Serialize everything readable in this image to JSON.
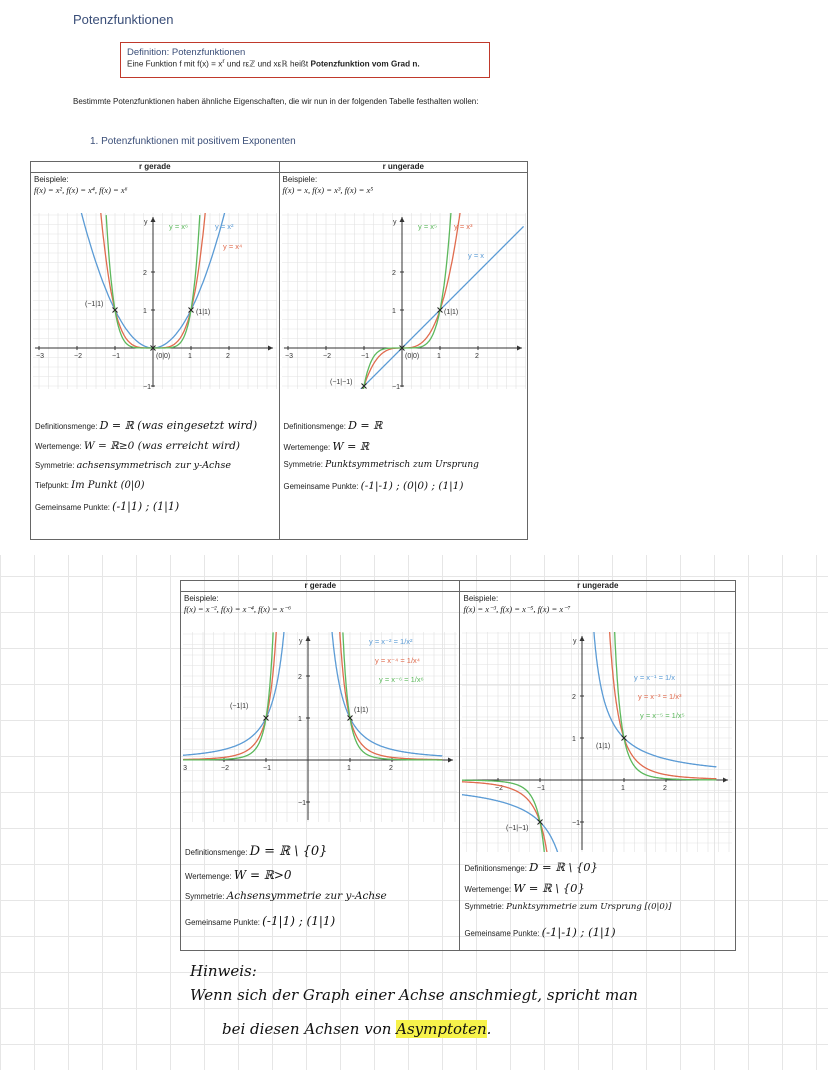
{
  "page_title": "Potenzfunktionen",
  "definition": {
    "heading": "Definition: Potenzfunktionen",
    "text_before": "Eine Funktion f mit f(x) = x",
    "exp": "r",
    "text_mid": " und rεℤ und xεℝ heißt ",
    "bold": "Potenzfunktion vom Grad n."
  },
  "intro": "Bestimmte Potenzfunktionen haben ähnliche Eigenschaften, die wir nun in der folgenden Tabelle festhalten wollen:",
  "subheading": "1. Potenzfunktionen mit positivem Exponenten",
  "labels": {
    "beispiele": "Beispiele:",
    "definitionsmenge": "Definitionsmenge:",
    "wertemenge": "Wertemenge:",
    "symmetrie": "Symmetrie:",
    "tiefpunkt": "Tiefpunkt:",
    "gemeinsame_punkte": "Gemeinsame Punkte:"
  },
  "table1": {
    "col1": {
      "header": "r gerade",
      "examples": "f(x) = x², f(x) = x⁴, f(x) = x⁶",
      "graph_labels": {
        "a": "y = x⁶",
        "b": "y = x²",
        "c": "y = x⁴",
        "p1": "(−1|1)",
        "p2": "(1|1)",
        "p0": "(0|0)"
      },
      "definitionsmenge": "D = ℝ  (was eingesetzt wird)",
      "wertemenge": "W = ℝ≥0   (was erreicht wird)",
      "symmetrie": "achsensymmetrisch zur y-Achse",
      "tiefpunkt": "Im Punkt (0|0)",
      "gemeinsame_punkte": "(-1|1) ;  (1|1)"
    },
    "col2": {
      "header": "r ungerade",
      "examples": "f(x) = x, f(x) = x³, f(x) = x⁵",
      "graph_labels": {
        "a": "y = x⁵",
        "b": "y = x³",
        "c": "y = x",
        "p1": "(1|1)",
        "p2": "(−1|−1)",
        "p0": "(0|0)"
      },
      "definitionsmenge": "D = ℝ",
      "wertemenge": "W = ℝ",
      "symmetrie": "Punktsymmetrisch zum Ursprung",
      "gemeinsame_punkte": "(-1|-1) ; (0|0) ; (1|1)"
    }
  },
  "table2": {
    "col1": {
      "header": "r gerade",
      "examples": "f(x) = x⁻², f(x) = x⁻⁴, f(x) = x⁻⁶",
      "graph_labels": {
        "a": "y = x⁻² = 1/x²",
        "b": "y = x⁻⁴ = 1/x⁴",
        "c": "y = x⁻⁶ = 1/x⁶",
        "p1": "(−1|1)",
        "p2": "(1|1)"
      },
      "definitionsmenge": "D = ℝ \\ {0}",
      "wertemenge": "W = ℝ>0",
      "symmetrie": "Achsensymmetrie zur y-Achse",
      "gemeinsame_punkte": "(-1|1) ; (1|1)"
    },
    "col2": {
      "header": "r ungerade",
      "examples": "f(x) = x⁻³, f(x) = x⁻⁵, f(x) = x⁻⁷",
      "graph_labels": {
        "a": "y = x⁻¹ = 1/x",
        "b": "y = x⁻³ = 1/x³",
        "c": "y = x⁻⁵ = 1/x⁵",
        "p1": "(1|1)",
        "p2": "(−1|−1)"
      },
      "definitionsmenge": "D = ℝ \\ {0}",
      "wertemenge": "W = ℝ \\ {0}",
      "symmetrie": "Punktsymmetrie zum Ursprung [(0|0)]",
      "gemeinsame_punkte": "(-1|-1) ; (1|1)"
    }
  },
  "axis": {
    "x_ticks": [
      "−3",
      "−2",
      "−1",
      "1",
      "2"
    ],
    "y_ticks": [
      "2",
      "1",
      "−1"
    ],
    "y": "y"
  },
  "colors": {
    "blue": "#5b9bd5",
    "red": "#e06c4f",
    "green": "#5cb85c",
    "border": "#c0392b",
    "highlight": "#f7f34b"
  },
  "hinweis": {
    "title": "Hinweis:",
    "line1": "Wenn sich der Graph einer Achse anschmiegt, spricht man",
    "line2_before": "bei diesen Achsen von ",
    "line2_highlight": "Asymptoten",
    "line2_after": "."
  }
}
